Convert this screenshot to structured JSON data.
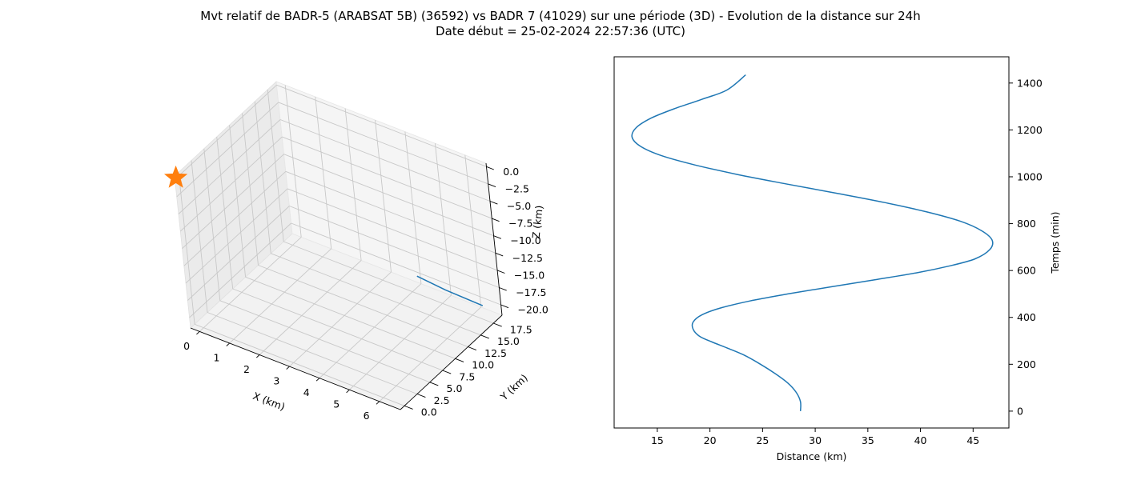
{
  "figure": {
    "title_line1": "Mvt relatif de BADR-5 (ARABSAT 5B) (36592) vs BADR 7 (41029) sur une période (3D) - Evolution de la distance sur 24h",
    "title_line2": "Date début = 25-02-2024 22:57:36 (UTC)"
  },
  "chart_data": [
    {
      "type": "line",
      "projection": "3d",
      "xlabel": "X (km)",
      "ylabel": "Y (km)",
      "zlabel": "Z (km)",
      "x_ticks": [
        "0",
        "1",
        "2",
        "3",
        "4",
        "5",
        "6"
      ],
      "y_ticks": [
        "0.0",
        "2.5",
        "5.0",
        "7.5",
        "10.0",
        "12.5",
        "15.0",
        "17.5"
      ],
      "z_ticks": [
        "0.0",
        "−2.5",
        "−5.0",
        "−7.5",
        "−10.0",
        "−12.5",
        "−15.0",
        "−17.5",
        "−20.0"
      ],
      "xlim": [
        -0.3,
        6.7
      ],
      "ylim": [
        -0.8,
        19.2
      ],
      "zlim": [
        -21.5,
        0.5
      ],
      "grid": true,
      "series": [
        {
          "x": [
            6.1,
            4.9,
            4.0
          ],
          "y": [
            19.0,
            18.8,
            18.6
          ],
          "z": [
            -21.0,
            -20.6,
            -20.0
          ],
          "color": "#1f77b4"
        }
      ],
      "marker": {
        "symbol": "star",
        "x": -0.3,
        "y": -0.6,
        "z": 0.1,
        "color": "#ff7f0e"
      }
    },
    {
      "type": "line",
      "xlabel": "Distance (km)",
      "ylabel": "Temps (min)",
      "x_ticks": [
        15,
        20,
        25,
        30,
        35,
        40,
        45
      ],
      "y_ticks": [
        0,
        200,
        400,
        600,
        800,
        1000,
        1200,
        1400
      ],
      "xlim": [
        10.9,
        48.4
      ],
      "ylim": [
        -72,
        1512
      ],
      "y_axis_side": "right",
      "grid": false,
      "series": [
        {
          "color": "#1f77b4",
          "x": [
            28.6,
            28.6,
            28.2,
            27.4,
            26.2,
            24.8,
            23.2,
            21.6,
            20.2,
            19.0,
            18.4,
            18.4,
            19.2,
            21.0,
            23.8,
            27.4,
            31.4,
            35.6,
            39.6,
            42.8,
            45.2,
            46.6,
            46.8,
            45.8,
            43.8,
            40.6,
            36.6,
            32.0,
            27.2,
            22.6,
            18.6,
            15.4,
            13.4,
            12.6,
            13.0,
            14.4,
            16.6,
            19.2,
            21.6,
            23.4
          ],
          "y": [
            0,
            40,
            80,
            120,
            160,
            200,
            240,
            270,
            295,
            320,
            350,
            380,
            410,
            440,
            470,
            500,
            530,
            560,
            590,
            620,
            650,
            690,
            730,
            770,
            810,
            850,
            890,
            930,
            970,
            1010,
            1050,
            1090,
            1130,
            1170,
            1210,
            1250,
            1290,
            1330,
            1370,
            1435
          ]
        }
      ]
    }
  ]
}
